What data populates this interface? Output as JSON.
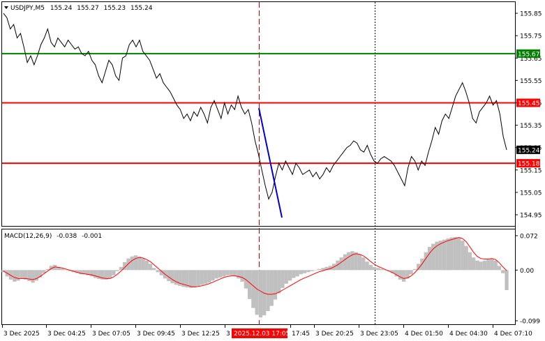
{
  "chart_data": [
    {
      "type": "line",
      "panel": "price",
      "header": {
        "symbol": "USDJPY,M5",
        "open": "155.24",
        "high": "155.27",
        "low": "155.23",
        "close": "155.24"
      },
      "ylim": [
        154.9,
        155.9
      ],
      "y_ticks": [
        "155.85",
        "155.75",
        "155.65",
        "155.55",
        "155.45",
        "155.35",
        "155.25",
        "155.15",
        "155.05",
        "154.95"
      ],
      "x_ticks": [
        "3 Dec 2025",
        "3 Dec 04:25",
        "3 Dec 07:05",
        "3 Dec 09:45",
        "3 Dec 12:25",
        "3",
        "17:45",
        "3 Dec 20:25",
        "3 Dec 23:05",
        "4 Dec 01:50",
        "4 Dec 04:30",
        "4 Dec 07:10"
      ],
      "x_cursor_label": "2025.12.03 17:05",
      "current_price_label": "155.24",
      "levels": [
        {
          "value": 155.67,
          "label": "155.67",
          "color": "#008000"
        },
        {
          "value": 155.45,
          "label": "155.45",
          "color": "#ff0000"
        },
        {
          "value": 155.18,
          "label": "155.18",
          "color": "#ff0000"
        }
      ],
      "series": [
        {
          "color": "#000000",
          "values": [
            155.85,
            155.83,
            155.78,
            155.8,
            155.74,
            155.76,
            155.7,
            155.63,
            155.66,
            155.62,
            155.66,
            155.71,
            155.74,
            155.78,
            155.72,
            155.7,
            155.74,
            155.72,
            155.7,
            155.73,
            155.71,
            155.69,
            155.7,
            155.67,
            155.66,
            155.68,
            155.64,
            155.62,
            155.57,
            155.54,
            155.59,
            155.64,
            155.62,
            155.57,
            155.55,
            155.65,
            155.66,
            155.71,
            155.73,
            155.7,
            155.73,
            155.68,
            155.66,
            155.64,
            155.6,
            155.56,
            155.58,
            155.54,
            155.52,
            155.5,
            155.47,
            155.44,
            155.42,
            155.38,
            155.4,
            155.37,
            155.41,
            155.39,
            155.43,
            155.4,
            155.36,
            155.43,
            155.46,
            155.42,
            155.38,
            155.45,
            155.4,
            155.44,
            155.42,
            155.48,
            155.43,
            155.4,
            155.42,
            155.36,
            155.28,
            155.22,
            155.15,
            155.08,
            155.02,
            155.05,
            155.12,
            155.18,
            155.15,
            155.19,
            155.16,
            155.13,
            155.18,
            155.16,
            155.13,
            155.14,
            155.15,
            155.12,
            155.14,
            155.11,
            155.13,
            155.16,
            155.14,
            155.17,
            155.19,
            155.21,
            155.23,
            155.25,
            155.26,
            155.28,
            155.27,
            155.24,
            155.23,
            155.26,
            155.22,
            155.19,
            155.18,
            155.2,
            155.21,
            155.2,
            155.19,
            155.17,
            155.14,
            155.11,
            155.08,
            155.16,
            155.21,
            155.19,
            155.15,
            155.19,
            155.17,
            155.23,
            155.28,
            155.34,
            155.31,
            155.37,
            155.4,
            155.38,
            155.43,
            155.48,
            155.51,
            155.54,
            155.5,
            155.45,
            155.38,
            155.36,
            155.41,
            155.43,
            155.45,
            155.48,
            155.44,
            155.46,
            155.4,
            155.3,
            155.24
          ]
        }
      ]
    },
    {
      "type": "bar",
      "panel": "indicator",
      "header": {
        "name": "MACD(12,26,9)",
        "macd": "-0.038",
        "signal": "-0.001"
      },
      "ylim": [
        -0.099,
        0.072
      ],
      "y_ticks": [
        "0.072",
        "0.00",
        "-0.099"
      ],
      "series": [
        {
          "color": "#c0c0c0",
          "values": [
            -0.004,
            -0.012,
            -0.018,
            -0.022,
            -0.02,
            -0.016,
            -0.018,
            -0.021,
            -0.024,
            -0.02,
            -0.014,
            -0.006,
            0.002,
            0.008,
            0.01,
            0.006,
            0.003,
            0.001,
            -0.002,
            -0.004,
            -0.006,
            -0.008,
            -0.008,
            -0.01,
            -0.012,
            -0.015,
            -0.017,
            -0.018,
            -0.018,
            -0.016,
            -0.01,
            -0.002,
            0.006,
            0.015,
            0.022,
            0.026,
            0.028,
            0.026,
            0.022,
            0.018,
            0.012,
            0.004,
            -0.004,
            -0.01,
            -0.016,
            -0.021,
            -0.025,
            -0.028,
            -0.03,
            -0.032,
            -0.033,
            -0.034,
            -0.033,
            -0.03,
            -0.028,
            -0.026,
            -0.024,
            -0.02,
            -0.016,
            -0.014,
            -0.012,
            -0.01,
            -0.01,
            -0.012,
            -0.016,
            -0.022,
            -0.035,
            -0.055,
            -0.072,
            -0.085,
            -0.09,
            -0.086,
            -0.078,
            -0.068,
            -0.056,
            -0.044,
            -0.034,
            -0.026,
            -0.02,
            -0.015,
            -0.012,
            -0.008,
            -0.006,
            -0.004,
            -0.002,
            0.0,
            0.002,
            0.004,
            0.006,
            0.008,
            0.012,
            0.018,
            0.024,
            0.03,
            0.034,
            0.036,
            0.034,
            0.03,
            0.024,
            0.016,
            0.01,
            0.006,
            0.004,
            0.002,
            0.0,
            -0.002,
            -0.006,
            -0.012,
            -0.018,
            -0.022,
            -0.016,
            -0.008,
            0.002,
            0.012,
            0.022,
            0.034,
            0.044,
            0.05,
            0.054,
            0.056,
            0.058,
            0.06,
            0.062,
            0.063,
            0.062,
            0.056,
            0.046,
            0.034,
            0.024,
            0.018,
            0.016,
            0.018,
            0.02,
            0.022,
            0.018,
            0.008,
            -0.006,
            -0.038
          ]
        },
        {
          "color": "#ff0000",
          "values": [
            -0.002,
            -0.006,
            -0.01,
            -0.014,
            -0.016,
            -0.016,
            -0.016,
            -0.017,
            -0.018,
            -0.016,
            -0.012,
            -0.007,
            -0.002,
            0.003,
            0.006,
            0.005,
            0.004,
            0.002,
            0.0,
            -0.002,
            -0.004,
            -0.006,
            -0.007,
            -0.008,
            -0.009,
            -0.011,
            -0.013,
            -0.015,
            -0.016,
            -0.016,
            -0.013,
            -0.008,
            -0.002,
            0.005,
            0.012,
            0.018,
            0.022,
            0.024,
            0.023,
            0.02,
            0.016,
            0.01,
            0.004,
            -0.002,
            -0.008,
            -0.013,
            -0.018,
            -0.022,
            -0.025,
            -0.027,
            -0.029,
            -0.031,
            -0.032,
            -0.031,
            -0.03,
            -0.028,
            -0.026,
            -0.023,
            -0.02,
            -0.017,
            -0.014,
            -0.012,
            -0.011,
            -0.011,
            -0.012,
            -0.014,
            -0.018,
            -0.024,
            -0.03,
            -0.036,
            -0.04,
            -0.044,
            -0.046,
            -0.046,
            -0.045,
            -0.042,
            -0.038,
            -0.034,
            -0.03,
            -0.026,
            -0.022,
            -0.018,
            -0.015,
            -0.012,
            -0.009,
            -0.006,
            -0.003,
            -0.001,
            0.001,
            0.003,
            0.006,
            0.01,
            0.015,
            0.02,
            0.025,
            0.029,
            0.031,
            0.03,
            0.027,
            0.022,
            0.016,
            0.011,
            0.007,
            0.004,
            0.001,
            -0.002,
            -0.005,
            -0.009,
            -0.013,
            -0.016,
            -0.015,
            -0.011,
            -0.005,
            0.003,
            0.012,
            0.022,
            0.032,
            0.04,
            0.046,
            0.05,
            0.053,
            0.056,
            0.058,
            0.06,
            0.062,
            0.06,
            0.054,
            0.044,
            0.034,
            0.026,
            0.022,
            0.021,
            0.021,
            0.022,
            0.02,
            0.014,
            0.006,
            -0.001
          ]
        }
      ]
    }
  ],
  "colors": {
    "background": "#ffffff",
    "grid": "#c0c0c0",
    "axis": "#000000",
    "cursor": "#c00000",
    "trend": "#0000cc",
    "label_bg": "#000000",
    "cursor_label_bg": "#ff0000"
  }
}
